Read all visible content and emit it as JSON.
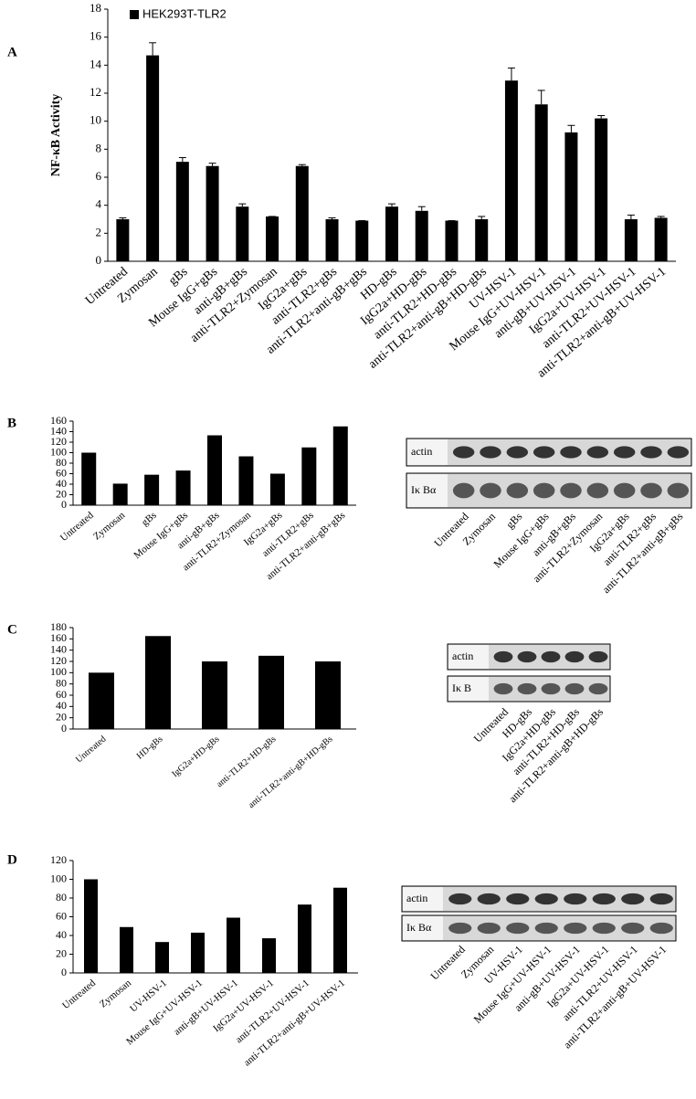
{
  "chart_data": [
    {
      "type": "bar",
      "panel": "A",
      "ylabel": "NF-κB Activity",
      "categories": [
        "Untreated",
        "Zymosan",
        "gBs",
        "Mouse IgG+gBs",
        "anti-gB+gBs",
        "anti-TLR2+Zymosan",
        "IgG2a+gBs",
        "anti-TLR2+gBs",
        "anti-TLR2+anti-gB+gBs",
        "HD-gBs",
        "IgG2a+HD-gBs",
        "anti-TLR2+HD-gBs",
        "anti-TLR2+anti-gB+HD-gBs",
        "UV-HSV-1",
        "Mouse IgG+UV-HSV-1",
        "anti-gB+UV-HSV-1",
        "IgG2a+UV-HSV-1",
        "anti-TLR2+UV-HSV-1",
        "anti-TLR2+anti-gB+UV-HSV-1"
      ],
      "series": [
        {
          "name": "HEK293T-TLR2",
          "color": "#000000",
          "values": [
            3.0,
            14.7,
            7.1,
            6.8,
            3.9,
            3.2,
            6.8,
            3.0,
            2.9,
            3.9,
            3.6,
            2.9,
            3.0,
            12.9,
            11.2,
            9.2,
            10.2,
            3.0,
            3.1
          ],
          "errors": [
            0.1,
            0.9,
            0.3,
            0.2,
            0.2,
            0.0,
            0.1,
            0.1,
            0.0,
            0.2,
            0.3,
            0.0,
            0.2,
            0.9,
            1.0,
            0.5,
            0.2,
            0.3,
            0.1
          ]
        }
      ],
      "ylim": [
        0,
        18
      ],
      "yticks": [
        0,
        2,
        4,
        6,
        8,
        10,
        12,
        14,
        16,
        18
      ]
    },
    {
      "type": "bar",
      "panel": "B",
      "color": "#000000",
      "categories": [
        "Untreated",
        "Zymosan",
        "gBs",
        "Mouse IgG+gBs",
        "anti-gB+gBs",
        "anti-TLR2+Zymosan",
        "IgG2a+gBs",
        "anti-TLR2+gBs",
        "anti-TLR2+anti-gB+gBs"
      ],
      "values": [
        100,
        41,
        58,
        66,
        133,
        93,
        60,
        110,
        150
      ],
      "ylim": [
        0,
        160
      ],
      "yticks": [
        0,
        20,
        40,
        60,
        80,
        100,
        120,
        140,
        160
      ],
      "blot_rows": [
        "actin",
        "Iκ Bα"
      ]
    },
    {
      "type": "bar",
      "panel": "C",
      "color": "#000000",
      "categories": [
        "Untreated",
        "HD-gBs",
        "IgG2a+HD-gBs",
        "anti-TLR2+HD-gBs",
        "anti-TLR2+anti-gB+HD-gBs"
      ],
      "values": [
        100,
        165,
        120,
        130,
        120
      ],
      "ylim": [
        0,
        180
      ],
      "yticks": [
        0,
        20,
        40,
        60,
        80,
        100,
        120,
        140,
        160,
        180
      ],
      "blot_rows": [
        "actin",
        "Iκ B"
      ]
    },
    {
      "type": "bar",
      "panel": "D",
      "color": "#000000",
      "categories": [
        "Untreated",
        "Zymosan",
        "UV-HSV-1",
        "Mouse IgG+UV-HSV-1",
        "anti-gB+UV-HSV-1",
        "IgG2a+UV-HSV-1",
        "anti-TLR2+UV-HSV-1",
        "anti-TLR2+anti-gB+UV-HSV-1"
      ],
      "values": [
        100,
        49,
        33,
        43,
        59,
        37,
        73,
        91
      ],
      "ylim": [
        0,
        120
      ],
      "yticks": [
        0,
        20,
        40,
        60,
        80,
        100,
        120
      ],
      "blot_rows": [
        "actin",
        "Iκ Bα"
      ]
    }
  ]
}
